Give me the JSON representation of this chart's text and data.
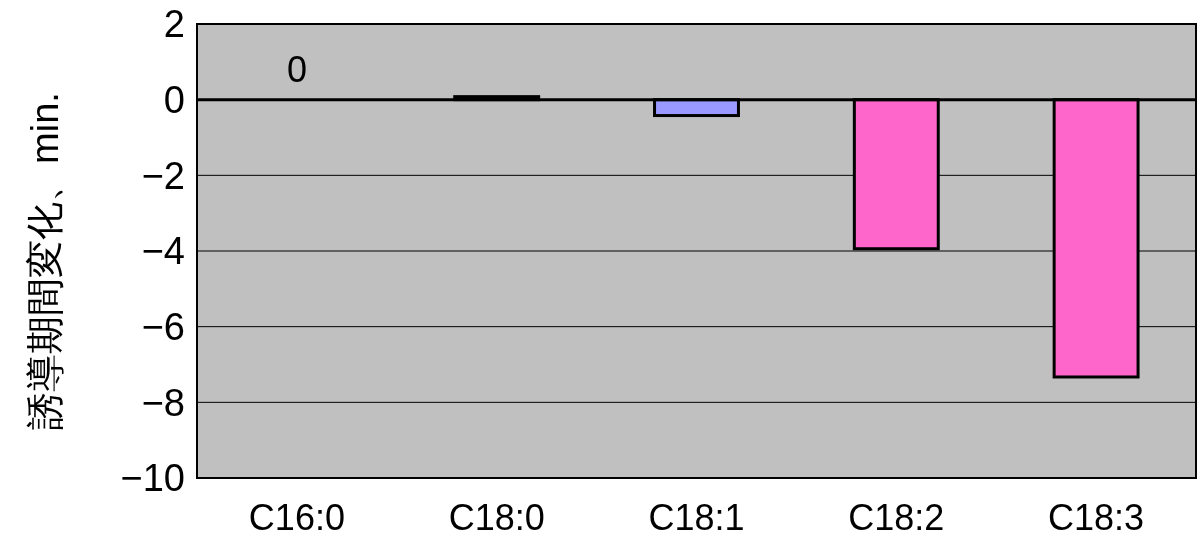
{
  "chart_data": {
    "type": "bar",
    "ylabel": "誘導期間変化、min.",
    "categories": [
      "C16:0",
      "C18:0",
      "C18:1",
      "C18:2",
      "C18:3"
    ],
    "values": [
      0,
      0.08,
      -0.42,
      -3.94,
      -7.33
    ],
    "colors": [
      "#9999ff",
      "#9999ff",
      "#9999ff",
      "#ff66cc",
      "#ff66cc"
    ],
    "value_labels": [
      "0",
      null,
      null,
      null,
      null
    ],
    "ylim": [
      -10,
      2
    ],
    "yticks": [
      2,
      0,
      {
        "value": -2,
        "label": "−2"
      },
      {
        "value": -4,
        "label": "−4"
      },
      {
        "value": -6,
        "label": "−6"
      },
      {
        "value": -8,
        "label": "−8"
      },
      {
        "value": -10,
        "label": "−10"
      }
    ],
    "grid": "y"
  }
}
